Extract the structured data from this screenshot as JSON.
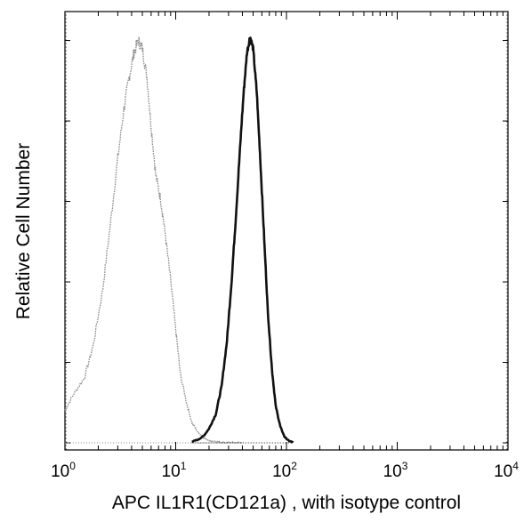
{
  "chart_data": {
    "type": "line",
    "title": "",
    "xlabel": "APC IL1R1(CD121a) , with isotype control",
    "ylabel": "Relative Cell Number",
    "x_scale": "log",
    "xlim": [
      1,
      10000
    ],
    "ylim": [
      0,
      1
    ],
    "x_ticks": [
      {
        "base": "10",
        "exp": "0"
      },
      {
        "base": "10",
        "exp": "1"
      },
      {
        "base": "10",
        "exp": "2"
      },
      {
        "base": "10",
        "exp": "3"
      },
      {
        "base": "10",
        "exp": "4"
      }
    ],
    "x_tick_values": [
      1,
      10,
      100,
      1000,
      10000
    ],
    "y_tick_count": 5,
    "grid": false,
    "legend": "none",
    "series": [
      {
        "style": "dotted-light",
        "color": "#8c8c8c",
        "x": [
          1.0,
          1.2,
          1.5,
          1.8,
          2.2,
          2.6,
          3.0,
          3.4,
          3.8,
          4.2,
          4.6,
          5.0,
          5.5,
          6.0,
          6.6,
          7.3,
          8.0,
          9.0,
          10,
          11,
          12.5,
          14,
          16,
          18,
          20,
          23,
          26,
          30,
          35,
          40
        ],
        "y": [
          0.08,
          0.12,
          0.16,
          0.24,
          0.38,
          0.55,
          0.7,
          0.82,
          0.9,
          0.96,
          0.99,
          0.97,
          0.9,
          0.78,
          0.66,
          0.6,
          0.52,
          0.4,
          0.28,
          0.17,
          0.1,
          0.05,
          0.025,
          0.012,
          0.006,
          0.003,
          0.0015,
          0.0008,
          0.0004,
          0.0002
        ]
      },
      {
        "style": "solid-dark",
        "color": "#111111",
        "x": [
          14,
          16,
          18,
          20,
          23,
          26,
          29,
          32,
          35,
          38,
          41,
          44,
          47,
          50,
          54,
          58,
          63,
          68,
          74,
          80,
          88,
          96,
          105,
          115
        ],
        "y": [
          0.003,
          0.008,
          0.018,
          0.035,
          0.07,
          0.14,
          0.25,
          0.4,
          0.56,
          0.72,
          0.86,
          0.96,
          1.0,
          0.97,
          0.86,
          0.7,
          0.5,
          0.32,
          0.18,
          0.09,
          0.04,
          0.015,
          0.005,
          0.001
        ]
      }
    ]
  }
}
